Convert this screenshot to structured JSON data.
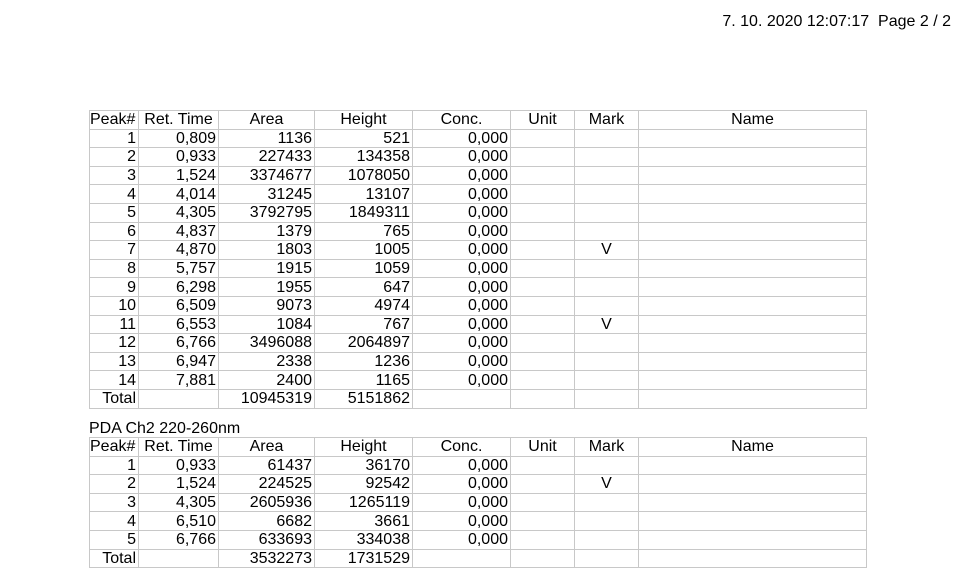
{
  "header": {
    "timestamp": "7. 10. 2020 12:07:17",
    "page": "Page 2 / 2"
  },
  "columns": [
    "Peak#",
    "Ret. Time",
    "Area",
    "Height",
    "Conc.",
    "Unit",
    "Mark",
    "Name"
  ],
  "table1": {
    "rows": [
      [
        "1",
        "0,809",
        "1136",
        "521",
        "0,000",
        "",
        "",
        ""
      ],
      [
        "2",
        "0,933",
        "227433",
        "134358",
        "0,000",
        "",
        "",
        ""
      ],
      [
        "3",
        "1,524",
        "3374677",
        "1078050",
        "0,000",
        "",
        "",
        ""
      ],
      [
        "4",
        "4,014",
        "31245",
        "13107",
        "0,000",
        "",
        "",
        ""
      ],
      [
        "5",
        "4,305",
        "3792795",
        "1849311",
        "0,000",
        "",
        "",
        ""
      ],
      [
        "6",
        "4,837",
        "1379",
        "765",
        "0,000",
        "",
        "",
        ""
      ],
      [
        "7",
        "4,870",
        "1803",
        "1005",
        "0,000",
        "",
        "V",
        ""
      ],
      [
        "8",
        "5,757",
        "1915",
        "1059",
        "0,000",
        "",
        "",
        ""
      ],
      [
        "9",
        "6,298",
        "1955",
        "647",
        "0,000",
        "",
        "",
        ""
      ],
      [
        "10",
        "6,509",
        "9073",
        "4974",
        "0,000",
        "",
        "",
        ""
      ],
      [
        "11",
        "6,553",
        "1084",
        "767",
        "0,000",
        "",
        "V",
        ""
      ],
      [
        "12",
        "6,766",
        "3496088",
        "2064897",
        "0,000",
        "",
        "",
        ""
      ],
      [
        "13",
        "6,947",
        "2338",
        "1236",
        "0,000",
        "",
        "",
        ""
      ],
      [
        "14",
        "7,881",
        "2400",
        "1165",
        "0,000",
        "",
        "",
        ""
      ]
    ],
    "total": [
      "Total",
      "",
      "10945319",
      "5151862",
      "",
      "",
      "",
      ""
    ]
  },
  "table2": {
    "title": "PDA Ch2 220-260nm",
    "rows": [
      [
        "1",
        "0,933",
        "61437",
        "36170",
        "0,000",
        "",
        "",
        ""
      ],
      [
        "2",
        "1,524",
        "224525",
        "92542",
        "0,000",
        "",
        "V",
        ""
      ],
      [
        "3",
        "4,305",
        "2605936",
        "1265119",
        "0,000",
        "",
        "",
        ""
      ],
      [
        "4",
        "6,510",
        "6682",
        "3661",
        "0,000",
        "",
        "",
        ""
      ],
      [
        "5",
        "6,766",
        "633693",
        "334038",
        "0,000",
        "",
        "",
        ""
      ]
    ],
    "total": [
      "Total",
      "",
      "3532273",
      "1731529",
      "",
      "",
      "",
      ""
    ]
  }
}
